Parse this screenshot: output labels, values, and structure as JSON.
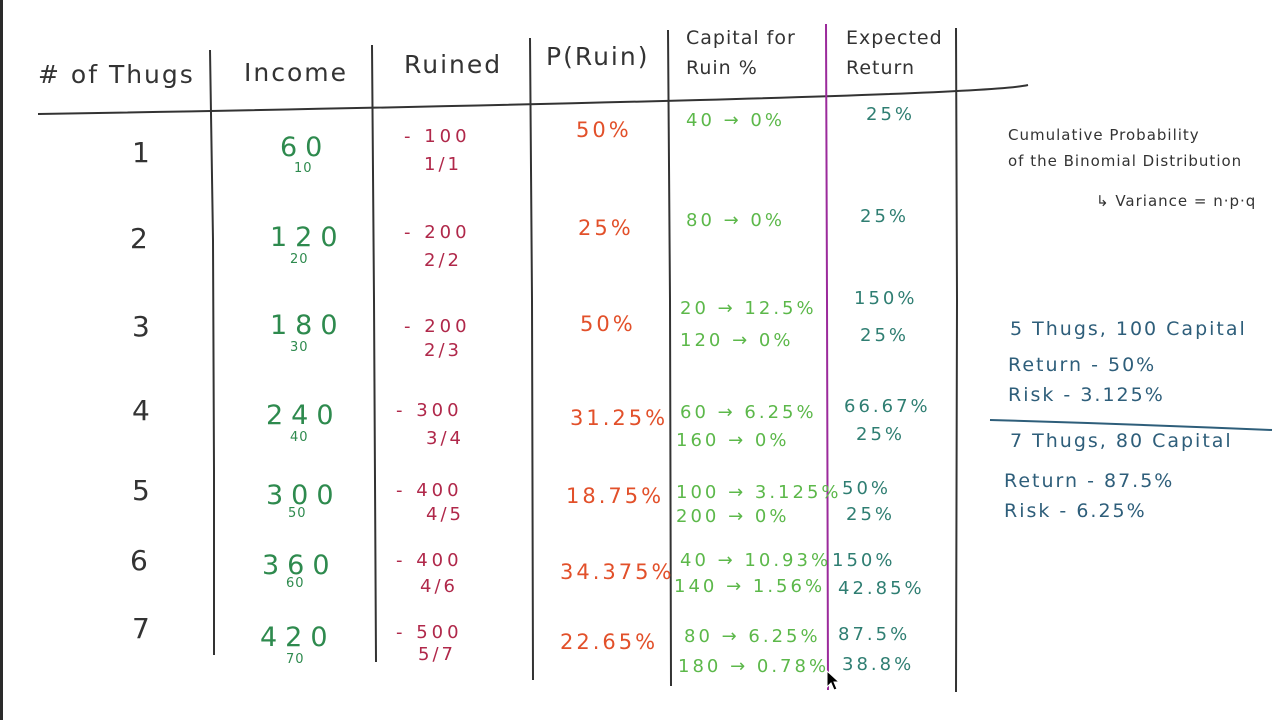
{
  "table": {
    "headers": {
      "thugs": "# of Thugs",
      "income": "Income",
      "ruined": "Ruined",
      "p_ruin": "P(Ruin)",
      "capital_line1": "Capital for",
      "capital_line2": "Ruin %",
      "return_line1": "Expected",
      "return_line2": "Return"
    },
    "rows": [
      {
        "thugs": "1",
        "income": "60",
        "income_sub": "10",
        "ruined": "- 100",
        "ruined_frac": "1/1",
        "p_ruin": "50%",
        "capital": [
          "40 → 0%"
        ],
        "expected_return": [
          "25%"
        ]
      },
      {
        "thugs": "2",
        "income": "120",
        "income_sub": "20",
        "ruined": "- 200",
        "ruined_frac": "2/2",
        "p_ruin": "25%",
        "capital": [
          "80 → 0%"
        ],
        "expected_return": [
          "25%"
        ]
      },
      {
        "thugs": "3",
        "income": "180",
        "income_sub": "30",
        "ruined": "- 200",
        "ruined_frac": "2/3",
        "p_ruin": "50%",
        "capital": [
          "20 → 12.5%",
          "120 → 0%"
        ],
        "expected_return": [
          "150%",
          "25%"
        ]
      },
      {
        "thugs": "4",
        "income": "240",
        "income_sub": "40",
        "ruined": "- 300",
        "ruined_frac": "3/4",
        "p_ruin": "31.25%",
        "capital": [
          "60 → 6.25%",
          "160 → 0%"
        ],
        "expected_return": [
          "66.67%",
          "25%"
        ]
      },
      {
        "thugs": "5",
        "income": "300",
        "income_sub": "50",
        "ruined": "- 400",
        "ruined_frac": "4/5",
        "p_ruin": "18.75%",
        "capital": [
          "100 → 3.125%",
          "200 → 0%"
        ],
        "expected_return": [
          "50%",
          "25%"
        ]
      },
      {
        "thugs": "6",
        "income": "360",
        "income_sub": "60",
        "ruined": "- 400",
        "ruined_frac": "4/6",
        "p_ruin": "34.375%",
        "capital": [
          "40 → 10.93%",
          "140 → 1.56%"
        ],
        "expected_return": [
          "150%",
          "42.85%"
        ]
      },
      {
        "thugs": "7",
        "income": "420",
        "income_sub": "70",
        "ruined": "- 500",
        "ruined_frac": "5/7",
        "p_ruin": "22.65%",
        "capital": [
          "80 → 6.25%",
          "180 → 0.78%"
        ],
        "expected_return": [
          "87.5%",
          "38.8%"
        ]
      }
    ]
  },
  "notes": {
    "line1": "Cumulative Probability",
    "line2": "of the Binomial Distribution",
    "line3": "↳ Variance = n·p·q"
  },
  "scenarios": [
    {
      "title": "5 Thugs, 100 Capital",
      "return": "Return - 50%",
      "risk": "Risk - 3.125%"
    },
    {
      "title": "7 Thugs, 80 Capital",
      "return": "Return - 87.5%",
      "risk": "Risk - 6.25%"
    }
  ],
  "colors": {
    "ink": "#333333",
    "income": "#2e8a4e",
    "ruined": "#b0284a",
    "p_ruin": "#e2502a",
    "capital": "#5cb84a",
    "expected_return": "#2f7e72",
    "scenario": "#2e5e7a",
    "divider_purple": "#9b2a9b"
  }
}
